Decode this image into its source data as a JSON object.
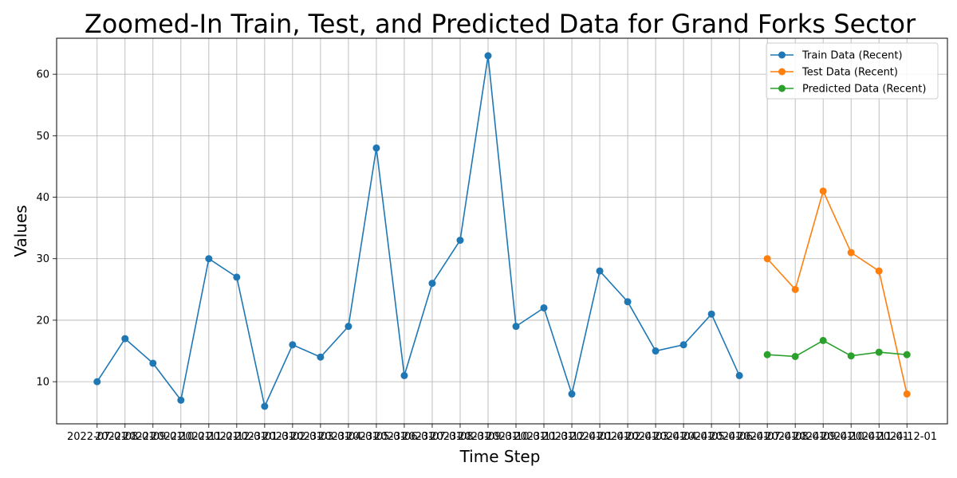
{
  "chart_data": {
    "type": "line",
    "title": "Zoomed-In Train, Test, and Predicted Data for Grand Forks Sector",
    "xlabel": "Time Step",
    "ylabel": "Values",
    "grid": true,
    "legend_position": "top-right",
    "ylim": [
      3.15,
      65.85
    ],
    "yticks": [
      10,
      20,
      30,
      40,
      50,
      60
    ],
    "x": [
      "2022-07-01",
      "2022-08-01",
      "2022-09-01",
      "2022-10-01",
      "2022-11-01",
      "2022-12-01",
      "2023-01-01",
      "2023-02-01",
      "2023-03-01",
      "2023-04-01",
      "2023-05-01",
      "2023-06-01",
      "2023-07-01",
      "2023-08-01",
      "2023-09-01",
      "2023-10-01",
      "2023-11-01",
      "2023-12-01",
      "2024-01-01",
      "2024-02-01",
      "2024-03-01",
      "2024-04-01",
      "2024-05-01",
      "2024-06-01",
      "2024-07-01",
      "2024-08-01",
      "2024-09-01",
      "2024-10-01",
      "2024-11-01",
      "2024-12-01"
    ],
    "series": [
      {
        "name": "Train Data (Recent)",
        "color": "#1f77b4",
        "x": [
          "2022-07-01",
          "2022-08-01",
          "2022-09-01",
          "2022-10-01",
          "2022-11-01",
          "2022-12-01",
          "2023-01-01",
          "2023-02-01",
          "2023-03-01",
          "2023-04-01",
          "2023-05-01",
          "2023-06-01",
          "2023-07-01",
          "2023-08-01",
          "2023-09-01",
          "2023-10-01",
          "2023-11-01",
          "2023-12-01",
          "2024-01-01",
          "2024-02-01",
          "2024-03-01",
          "2024-04-01",
          "2024-05-01",
          "2024-06-01"
        ],
        "values": [
          10,
          17,
          13,
          7,
          30,
          27,
          6,
          16,
          14,
          19,
          48,
          11,
          26,
          33,
          63,
          19,
          22,
          8,
          28,
          23,
          15,
          16,
          21,
          11
        ]
      },
      {
        "name": "Test Data (Recent)",
        "color": "#ff7f0e",
        "x": [
          "2024-07-01",
          "2024-08-01",
          "2024-09-01",
          "2024-10-01",
          "2024-11-01",
          "2024-12-01"
        ],
        "values": [
          30,
          25,
          41,
          31,
          28,
          8
        ]
      },
      {
        "name": "Predicted Data (Recent)",
        "color": "#2ca02c",
        "x": [
          "2024-07-01",
          "2024-08-01",
          "2024-09-01",
          "2024-10-01",
          "2024-11-01",
          "2024-12-01"
        ],
        "values": [
          14.4,
          14.1,
          16.7,
          14.2,
          14.8,
          14.4
        ]
      }
    ]
  }
}
